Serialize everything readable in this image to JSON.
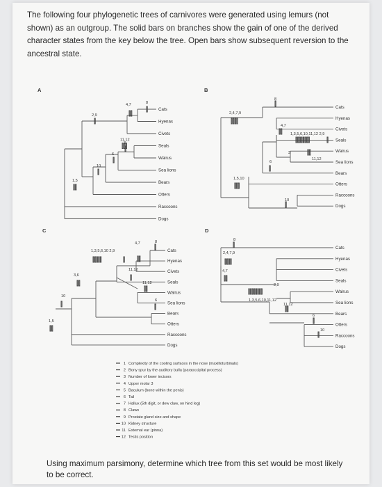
{
  "question": {
    "intro": "The following four phylogenetic trees of carnivores were generated using lemurs (not shown) as an outgroup. The solid bars on branches show the gain of one of the derived character states from the key below the tree. Open bars show subsequent reversion to the ancestral state.",
    "prompt": "Using maximum parsimony, determine which tree from this set would be most likely to be correct."
  },
  "taxa": [
    "Cats",
    "Hyenas",
    "Civets",
    "Seals",
    "Walrus",
    "Sea lions",
    "Bears",
    "Otters",
    "Raccoons",
    "Dogs"
  ],
  "trees": {
    "A": {
      "label": "A",
      "branch_labels": [
        "8",
        "4,7",
        "2,9",
        "11,12",
        "3",
        "6",
        "10",
        "1,5"
      ]
    },
    "B": {
      "label": "B",
      "branch_labels": [
        "8",
        "2,4,7,9",
        "4,7",
        "1,3,5,6,10,11,12 2,9",
        "3",
        "11,12",
        "6",
        "1,5,10",
        "10"
      ]
    },
    "C": {
      "label": "C",
      "branch_labels": [
        "8",
        "4,7",
        "1,3,5,6,10 2,9",
        "11,12",
        "3,6",
        "11,12",
        "6",
        "10",
        "1,5"
      ]
    },
    "D": {
      "label": "D",
      "branch_labels": [
        "8",
        "2,4,7,9",
        "4,7",
        "2,9",
        "1,3,5,6,10,11,12",
        "11,12",
        "6",
        "10"
      ]
    }
  },
  "key": [
    {
      "num": "1",
      "text": "Complexity of the cooling surfaces in the nose (maxilloturbinals)"
    },
    {
      "num": "2",
      "text": "Bony spur by the auditory bulla (paraoccipital process)"
    },
    {
      "num": "3",
      "text": "Number of lower incisors"
    },
    {
      "num": "4",
      "text": "Upper molar 3"
    },
    {
      "num": "5",
      "text": "Baculum (bone within the penis)"
    },
    {
      "num": "6",
      "text": "Tail"
    },
    {
      "num": "7",
      "text": "Hallux (5th digit, or dew claw, on hind leg)"
    },
    {
      "num": "8",
      "text": "Claws"
    },
    {
      "num": "9",
      "text": "Prostate gland size and shape"
    },
    {
      "num": "10",
      "text": "Kidney structure"
    },
    {
      "num": "11",
      "text": "External ear (pinna)"
    },
    {
      "num": "12",
      "text": "Testis position"
    }
  ]
}
